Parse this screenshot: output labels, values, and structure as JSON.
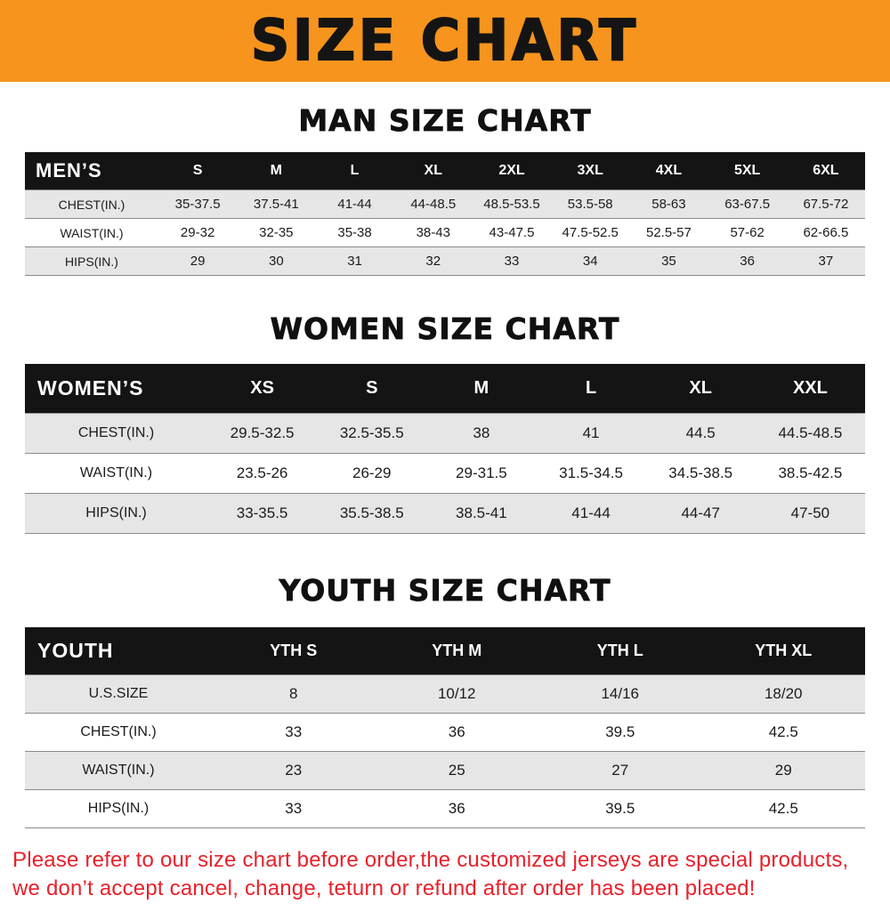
{
  "banner": {
    "title": "SIZE CHART",
    "bg_color": "#f7941e"
  },
  "sections": [
    {
      "id": "men",
      "heading": "MAN SIZE CHART",
      "table": {
        "header_label": "MEN’S",
        "columns": [
          "S",
          "M",
          "L",
          "XL",
          "2XL",
          "3XL",
          "4XL",
          "5XL",
          "6XL"
        ],
        "rows": [
          {
            "label": "CHEST(IN.)",
            "values": [
              "35-37.5",
              "37.5-41",
              "41-44",
              "44-48.5",
              "48.5-53.5",
              "53.5-58",
              "58-63",
              "63-67.5",
              "67.5-72"
            ]
          },
          {
            "label": "WAIST(IN.)",
            "values": [
              "29-32",
              "32-35",
              "35-38",
              "38-43",
              "43-47.5",
              "47.5-52.5",
              "52.5-57",
              "57-62",
              "62-66.5"
            ]
          },
          {
            "label": "HIPS(IN.)",
            "values": [
              "29",
              "30",
              "31",
              "32",
              "33",
              "34",
              "35",
              "36",
              "37"
            ]
          }
        ]
      }
    },
    {
      "id": "women",
      "heading": "WOMEN SIZE CHART",
      "table": {
        "header_label": "WOMEN’S",
        "columns": [
          "XS",
          "S",
          "M",
          "L",
          "XL",
          "XXL"
        ],
        "rows": [
          {
            "label": "CHEST(IN.)",
            "values": [
              "29.5-32.5",
              "32.5-35.5",
              "38",
              "41",
              "44.5",
              "44.5-48.5"
            ]
          },
          {
            "label": "WAIST(IN.)",
            "values": [
              "23.5-26",
              "26-29",
              "29-31.5",
              "31.5-34.5",
              "34.5-38.5",
              "38.5-42.5"
            ]
          },
          {
            "label": "HIPS(IN.)",
            "values": [
              "33-35.5",
              "35.5-38.5",
              "38.5-41",
              "41-44",
              "44-47",
              "47-50"
            ]
          }
        ]
      }
    },
    {
      "id": "youth",
      "heading": "YOUTH SIZE CHART",
      "table": {
        "header_label": "YOUTH",
        "columns": [
          "YTH S",
          "YTH M",
          "YTH L",
          "YTH XL"
        ],
        "rows": [
          {
            "label": "U.S.SIZE",
            "values": [
              "8",
              "10/12",
              "14/16",
              "18/20"
            ]
          },
          {
            "label": "CHEST(IN.)",
            "values": [
              "33",
              "36",
              "39.5",
              "42.5"
            ]
          },
          {
            "label": "WAIST(IN.)",
            "values": [
              "23",
              "25",
              "27",
              "29"
            ]
          },
          {
            "label": "HIPS(IN.)",
            "values": [
              "33",
              "36",
              "39.5",
              "42.5"
            ]
          }
        ]
      }
    }
  ],
  "footer": {
    "lines": [
      "Please refer to our size chart before order,the customized jerseys are special products,",
      "we don’t accept cancel, change, teturn or refund after order has been placed!"
    ],
    "text_color": "#e8212b"
  }
}
